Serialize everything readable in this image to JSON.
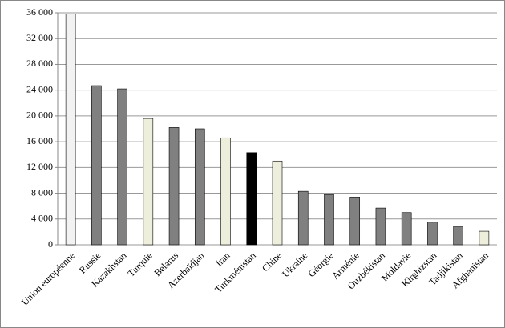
{
  "chart_data": {
    "type": "bar",
    "categories": [
      "Union européenne",
      "Russie",
      "Kazakhstan",
      "Turquie",
      "Belarus",
      "Azerbaïdjan",
      "Iran",
      "Turkménistan",
      "Chine",
      "Ukraine",
      "Géorgie",
      "Arménie",
      "Ouzbékistan",
      "Moldavie",
      "Kirghizstan",
      "Tadjikistan",
      "Afghanistan"
    ],
    "values": [
      35800,
      24700,
      24200,
      19600,
      18200,
      18000,
      16600,
      14300,
      13000,
      8300,
      7800,
      7400,
      5700,
      5000,
      3500,
      2850,
      2100
    ],
    "colors": [
      "#f2f2f2",
      "#808080",
      "#808080",
      "#eeeedc",
      "#808080",
      "#808080",
      "#eeeedc",
      "#000000",
      "#eeeedc",
      "#808080",
      "#808080",
      "#808080",
      "#808080",
      "#808080",
      "#808080",
      "#808080",
      "#eeeedc"
    ],
    "ylim": [
      0,
      36000
    ],
    "yticks": [
      0,
      {
        "value": 4000,
        "label": "4 000"
      },
      {
        "value": 8000,
        "label": "8 000"
      },
      {
        "value": 12000,
        "label": "12 000"
      },
      {
        "value": 16000,
        "label": "16 000"
      },
      {
        "value": 20000,
        "label": "20 000"
      },
      {
        "value": 24000,
        "label": "24 000"
      },
      {
        "value": 28000,
        "label": "28 000"
      },
      {
        "value": 32000,
        "label": "32 000"
      },
      {
        "value": 36000,
        "label": "36 000"
      }
    ],
    "grid": true
  }
}
